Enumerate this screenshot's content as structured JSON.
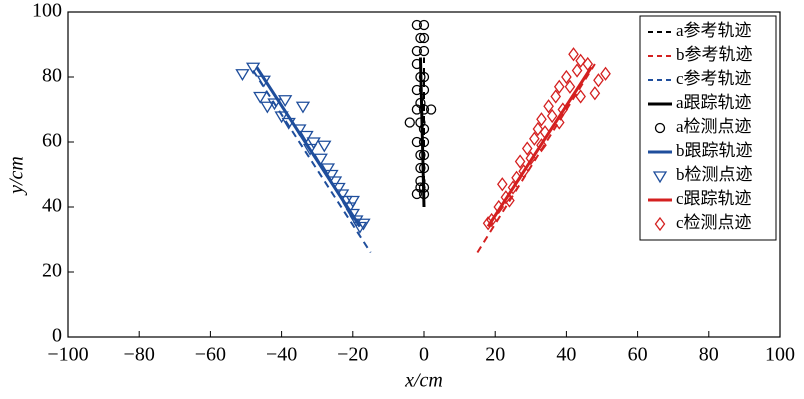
{
  "chart_data": {
    "type": "line",
    "xlabel": "x/cm",
    "ylabel": "y/cm",
    "xlim": [
      -100,
      100
    ],
    "xticks": [
      {
        "value": -100,
        "label": "−100"
      },
      {
        "value": -80,
        "label": "−80"
      },
      {
        "value": -60,
        "label": "−60"
      },
      {
        "value": -40,
        "label": "−40"
      },
      {
        "value": -20,
        "label": "−20"
      },
      0,
      20,
      40,
      60,
      80,
      100
    ],
    "ylim": [
      0,
      100
    ],
    "yticks": [
      0,
      20,
      40,
      60,
      80,
      100
    ],
    "legend": "upper right",
    "series": [
      {
        "name": "a参考轨迹",
        "color": "#000000",
        "style": "dashed",
        "x": [
          0,
          0
        ],
        "values": [
          40,
          86
        ]
      },
      {
        "name": "b参考轨迹",
        "color": "#d42020",
        "style": "dashed",
        "x": [
          15,
          48
        ],
        "values": [
          26,
          84
        ]
      },
      {
        "name": "c参考轨迹",
        "color": "#1f4e9c",
        "style": "dashed",
        "x": [
          -48,
          -15
        ],
        "values": [
          82,
          26
        ]
      },
      {
        "name": "a跟踪轨迹",
        "color": "#000000",
        "style": "solid",
        "x": [
          -1,
          0
        ],
        "values": [
          86,
          40
        ]
      },
      {
        "name": "a检测点迹",
        "color": "#000000",
        "style": "marker",
        "marker": "circle",
        "x": [
          -2,
          0,
          -1,
          0,
          -2,
          0,
          -2,
          -1,
          0,
          -2,
          0,
          -1,
          -2,
          0,
          2,
          -4,
          -1,
          0,
          -2,
          0,
          -1,
          0,
          -1,
          0,
          -1,
          -1,
          0,
          -2,
          0
        ],
        "values": [
          96,
          96,
          92,
          92,
          88,
          88,
          84,
          80,
          80,
          76,
          76,
          72,
          70,
          70,
          70,
          66,
          66,
          64,
          60,
          60,
          56,
          56,
          52,
          52,
          48,
          46,
          46,
          44,
          44
        ]
      },
      {
        "name": "b跟踪轨迹",
        "color": "#1f4e9c",
        "style": "solid",
        "x": [
          -47,
          -18
        ],
        "values": [
          83,
          34
        ]
      },
      {
        "name": "b检测点迹",
        "color": "#1f4e9c",
        "style": "marker",
        "marker": "triangle",
        "x": [
          -51,
          -48,
          -45,
          -46,
          -44,
          -42,
          -39,
          -40,
          -38,
          -35,
          -34,
          -33,
          -32,
          -31,
          -29,
          -28,
          -27,
          -26,
          -25,
          -24,
          -23,
          -22,
          -21,
          -20,
          -20,
          -19,
          -18,
          -17
        ],
        "values": [
          81,
          83,
          79,
          74,
          71,
          72,
          73,
          68,
          66,
          64,
          71,
          62,
          58,
          60,
          55,
          59,
          52,
          50,
          48,
          46,
          44,
          42,
          40,
          42,
          38,
          36,
          34,
          35
        ]
      },
      {
        "name": "c跟踪轨迹",
        "color": "#d42020",
        "style": "solid",
        "x": [
          18,
          47
        ],
        "values": [
          34,
          83
        ]
      },
      {
        "name": "c检测点迹",
        "color": "#d42020",
        "style": "marker",
        "marker": "diamond",
        "x": [
          18,
          19,
          21,
          22,
          23,
          24,
          25,
          26,
          27,
          28,
          29,
          30,
          31,
          32,
          33,
          33,
          34,
          35,
          36,
          37,
          38,
          38,
          40,
          41,
          42,
          43,
          44,
          46,
          48,
          49,
          51,
          39,
          44
        ],
        "values": [
          35,
          36,
          40,
          47,
          43,
          42,
          46,
          49,
          54,
          51,
          58,
          55,
          61,
          64,
          59,
          67,
          63,
          71,
          68,
          74,
          66,
          77,
          80,
          77,
          87,
          82,
          85,
          84,
          75,
          79,
          81,
          70,
          74
        ]
      }
    ]
  }
}
